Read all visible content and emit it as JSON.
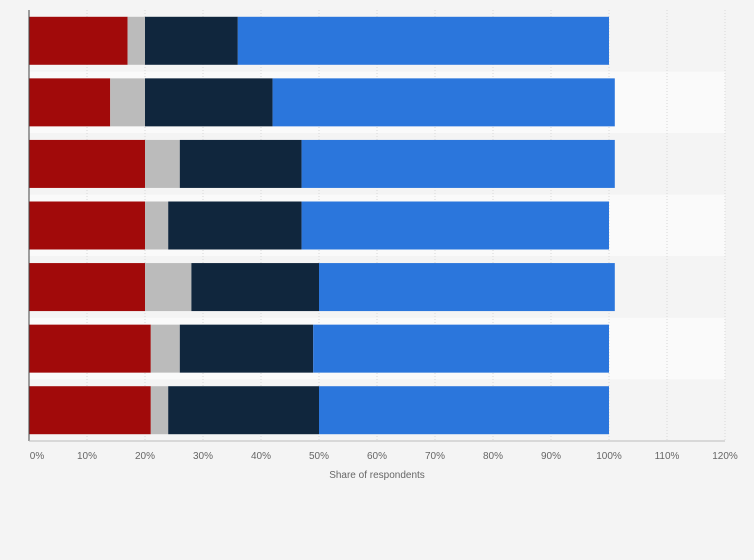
{
  "chart_data": {
    "type": "bar",
    "orientation": "horizontal",
    "stacked": true,
    "categories": [
      "",
      "",
      "",
      "",
      "",
      "",
      ""
    ],
    "series": [
      {
        "color": "#a10a0a",
        "values": [
          17,
          14,
          20,
          20,
          20,
          21,
          21
        ]
      },
      {
        "color": "#bbbbbb",
        "values": [
          3,
          6,
          6,
          4,
          8,
          5,
          3
        ]
      },
      {
        "color": "#10263d",
        "values": [
          16,
          22,
          21,
          23,
          22,
          23,
          26
        ]
      },
      {
        "color": "#2b76dc",
        "values": [
          64,
          59,
          54,
          53,
          51,
          51,
          50
        ]
      }
    ],
    "xlabel": "Share of respondents",
    "xlim": [
      0,
      120
    ],
    "xticks": [
      "0%",
      "10%",
      "20%",
      "30%",
      "40%",
      "50%",
      "60%",
      "70%",
      "80%",
      "90%",
      "100%",
      "110%",
      "120%"
    ],
    "grid": true,
    "legend": "none"
  }
}
